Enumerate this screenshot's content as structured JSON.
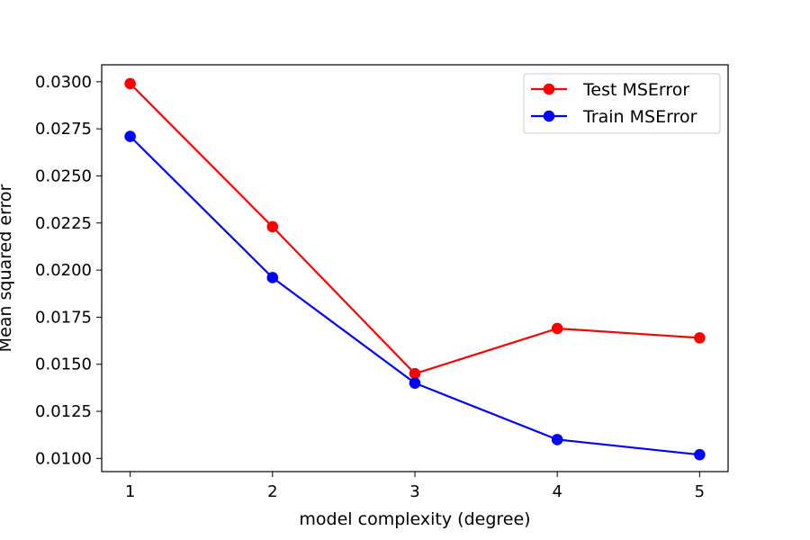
{
  "chart_data": {
    "type": "line",
    "title": "",
    "xlabel": "model complexity (degree)",
    "ylabel": "Mean squared error",
    "x": [
      1,
      2,
      3,
      4,
      5
    ],
    "xlim": [
      0.8,
      5.2
    ],
    "ylim": [
      0.0093,
      0.0309
    ],
    "x_ticks": [
      "1",
      "2",
      "3",
      "4",
      "5"
    ],
    "y_ticks": [
      "0.0100",
      "0.0125",
      "0.0150",
      "0.0175",
      "0.0200",
      "0.0225",
      "0.0250",
      "0.0275",
      "0.0300"
    ],
    "grid": false,
    "legend_position": "top-right",
    "series": [
      {
        "name": "Test MSError",
        "color": "#ff0000",
        "marker": "circle",
        "values": [
          0.0299,
          0.0223,
          0.0145,
          0.0169,
          0.0164
        ]
      },
      {
        "name": "Train MSError",
        "color": "#0000ff",
        "marker": "circle",
        "values": [
          0.0271,
          0.0196,
          0.014,
          0.011,
          0.0102
        ]
      }
    ]
  }
}
